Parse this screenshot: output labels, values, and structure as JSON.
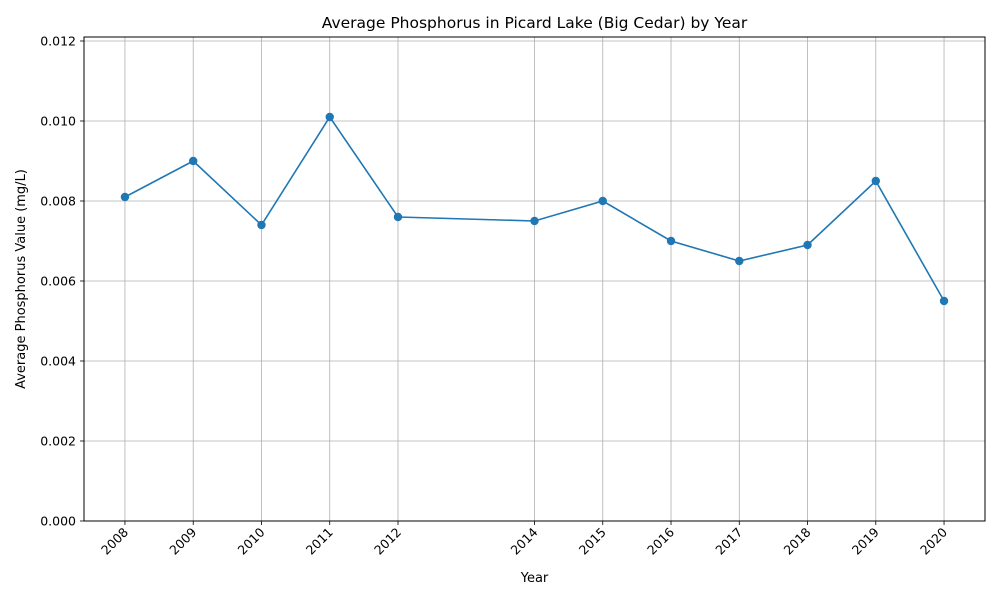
{
  "chart_data": {
    "type": "line",
    "title": "Average Phosphorus in Picard Lake (Big Cedar) by Year",
    "xlabel": "Year",
    "ylabel": "Average Phosphorus Value (mg/L)",
    "x": [
      2008,
      2009,
      2010,
      2011,
      2012,
      2014,
      2015,
      2016,
      2017,
      2018,
      2019,
      2020
    ],
    "x_tick_labels": [
      "2008",
      "2009",
      "2010",
      "2011",
      "2012",
      "2014",
      "2015",
      "2016",
      "2017",
      "2018",
      "2019",
      "2020"
    ],
    "series": [
      {
        "values": [
          0.0081,
          0.009,
          0.0074,
          0.0101,
          0.0076,
          0.0075,
          0.008,
          0.007,
          0.0065,
          0.0069,
          0.0085,
          0.0055
        ],
        "color": "#1f77b4",
        "marker": "circle"
      }
    ],
    "y_ticks": [
      0.0,
      0.002,
      0.004,
      0.006,
      0.008,
      0.01,
      0.012
    ],
    "y_tick_labels": [
      "0.000",
      "0.002",
      "0.004",
      "0.006",
      "0.008",
      "0.010",
      "0.012"
    ],
    "xlim": [
      2007.4,
      2020.6
    ],
    "ylim": [
      0,
      0.0121
    ],
    "grid": true,
    "x_tick_rotation_deg": 45
  }
}
